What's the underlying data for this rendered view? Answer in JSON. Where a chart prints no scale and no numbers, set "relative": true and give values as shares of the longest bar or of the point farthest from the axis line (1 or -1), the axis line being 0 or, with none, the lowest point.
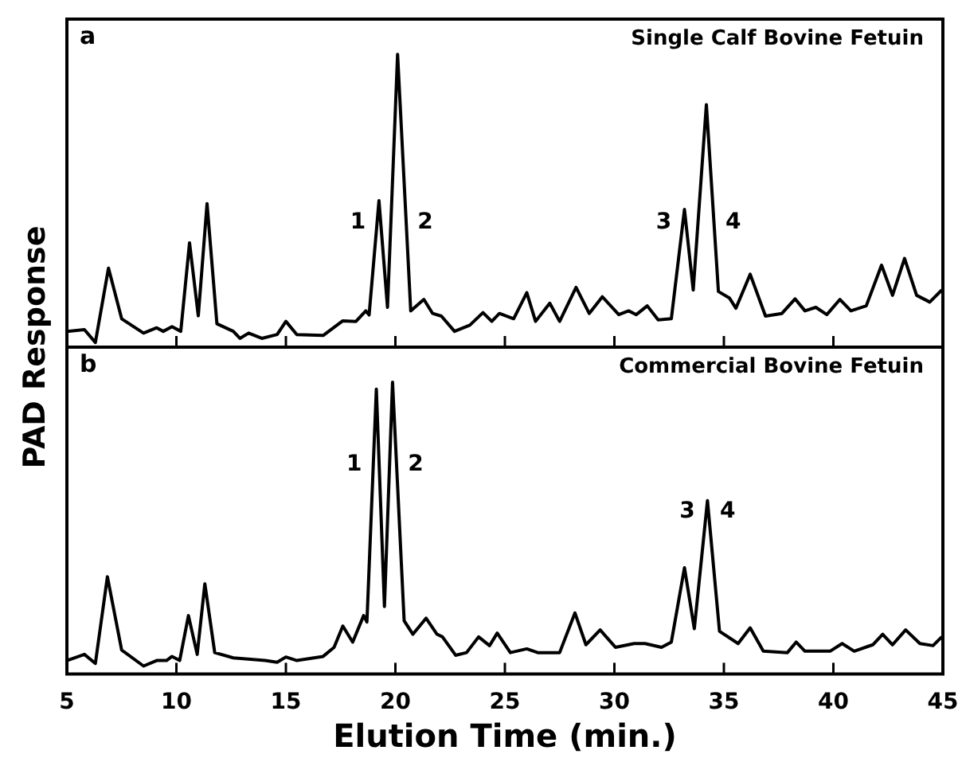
{
  "chart_data": [
    {
      "type": "line",
      "title": "Single Calf Bovine Fetuin",
      "ylabel": "PAD Response",
      "relative": true,
      "color": "#000000",
      "marker": "none",
      "line_style": "solid",
      "tick_labels": false,
      "xlim": [
        5,
        45
      ],
      "xticks": [
        5,
        10,
        15,
        20,
        25,
        30,
        35,
        40,
        45
      ],
      "x": [
        5,
        5.8,
        6.3,
        6.9,
        7.5,
        8.5,
        9.1,
        9.4,
        9.8,
        10.2,
        10.6,
        11.0,
        11.4,
        11.85,
        12.6,
        12.9,
        13.3,
        13.9,
        14.6,
        15.0,
        15.5,
        16.7,
        17.6,
        18.2,
        18.65,
        18.8,
        19.25,
        19.64,
        20.1,
        20.7,
        21.3,
        21.7,
        22.1,
        22.7,
        23.4,
        24.0,
        24.4,
        24.75,
        25.4,
        26.0,
        26.4,
        27.05,
        27.5,
        28.25,
        28.85,
        29.45,
        30.2,
        30.65,
        31.0,
        31.5,
        32.0,
        32.6,
        33.2,
        33.6,
        34.2,
        34.75,
        35.25,
        35.55,
        36.2,
        36.9,
        37.65,
        38.25,
        38.7,
        39.2,
        39.7,
        40.3,
        40.8,
        41.5,
        42.2,
        42.7,
        43.25,
        43.8,
        44.4,
        44.95
      ],
      "values": [
        0.054,
        0.06,
        0.016,
        0.27,
        0.097,
        0.048,
        0.066,
        0.054,
        0.07,
        0.054,
        0.356,
        0.107,
        0.49,
        0.08,
        0.054,
        0.03,
        0.048,
        0.03,
        0.043,
        0.088,
        0.043,
        0.04,
        0.09,
        0.088,
        0.124,
        0.11,
        0.5,
        0.136,
        1.0,
        0.124,
        0.163,
        0.115,
        0.106,
        0.054,
        0.075,
        0.118,
        0.088,
        0.115,
        0.097,
        0.186,
        0.088,
        0.15,
        0.088,
        0.204,
        0.115,
        0.172,
        0.111,
        0.124,
        0.111,
        0.141,
        0.093,
        0.097,
        0.47,
        0.195,
        0.828,
        0.19,
        0.168,
        0.133,
        0.249,
        0.106,
        0.115,
        0.165,
        0.124,
        0.136,
        0.111,
        0.163,
        0.124,
        0.141,
        0.28,
        0.177,
        0.303,
        0.177,
        0.154,
        0.195
      ],
      "annotations": [
        "a",
        {
          "text": "1",
          "x": 19.16,
          "y": 0.425
        },
        {
          "text": "2",
          "x": 20.49,
          "y": 0.425
        },
        {
          "text": "3",
          "x": 33.13,
          "y": 0.425
        },
        {
          "text": "4",
          "x": 34.55,
          "y": 0.425
        }
      ]
    },
    {
      "type": "line",
      "title": "Commercial Bovine Fetuin",
      "xlabel": "Elution Time (min.)",
      "relative": true,
      "color": "#000000",
      "marker": "none",
      "line_style": "solid",
      "tick_labels": "x",
      "xlim": [
        5,
        45
      ],
      "xticks": [
        5,
        10,
        15,
        20,
        25,
        30,
        35,
        40,
        45
      ],
      "x": [
        5,
        5.8,
        6.3,
        6.85,
        7.5,
        8.5,
        9.1,
        9.55,
        9.8,
        10.15,
        10.55,
        10.95,
        11.3,
        11.75,
        12.6,
        14.05,
        14.6,
        15.0,
        15.5,
        16.7,
        17.2,
        17.6,
        18.05,
        18.55,
        18.7,
        19.13,
        19.5,
        19.87,
        20.4,
        20.8,
        21.4,
        21.9,
        22.15,
        22.75,
        23.25,
        23.8,
        24.3,
        24.65,
        25.25,
        26.0,
        26.5,
        27.5,
        28.2,
        28.7,
        29.35,
        30.05,
        30.9,
        31.4,
        32.15,
        32.6,
        33.2,
        33.65,
        34.25,
        34.8,
        35.65,
        36.2,
        36.8,
        37.9,
        38.3,
        38.7,
        39.85,
        40.4,
        40.95,
        41.8,
        42.25,
        42.7,
        43.3,
        43.95,
        44.55,
        44.95
      ],
      "values": [
        0.046,
        0.067,
        0.036,
        0.333,
        0.082,
        0.027,
        0.046,
        0.046,
        0.06,
        0.046,
        0.2,
        0.067,
        0.309,
        0.073,
        0.055,
        0.046,
        0.04,
        0.058,
        0.046,
        0.06,
        0.091,
        0.164,
        0.109,
        0.2,
        0.178,
        0.976,
        0.231,
        1.0,
        0.182,
        0.136,
        0.191,
        0.136,
        0.127,
        0.064,
        0.073,
        0.127,
        0.097,
        0.14,
        0.073,
        0.086,
        0.073,
        0.073,
        0.209,
        0.1,
        0.151,
        0.091,
        0.104,
        0.104,
        0.091,
        0.109,
        0.364,
        0.155,
        0.594,
        0.146,
        0.104,
        0.158,
        0.078,
        0.073,
        0.109,
        0.078,
        0.078,
        0.104,
        0.078,
        0.1,
        0.136,
        0.1,
        0.151,
        0.104,
        0.097,
        0.127
      ],
      "annotations": [
        "b",
        {
          "text": "1",
          "x": 18.99,
          "y": 0.718
        },
        {
          "text": "2",
          "x": 20.05,
          "y": 0.718
        },
        {
          "text": "3",
          "x": 34.2,
          "y": 0.555
        },
        {
          "text": "4",
          "x": 34.3,
          "y": 0.555
        }
      ]
    }
  ]
}
